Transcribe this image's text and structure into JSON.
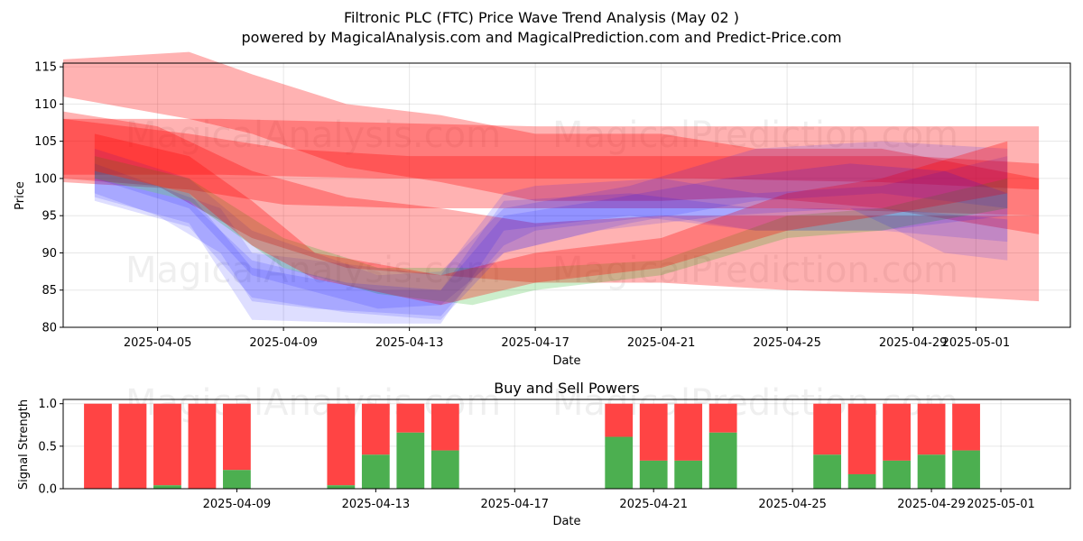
{
  "title_line1": "Filtronic PLC (FTC) Price Wave Trend Analysis (May 02 )",
  "title_line2": "powered by MagicalAnalysis.com and MagicalPrediction.com and Predict-Price.com",
  "watermarks": [
    "MagicalAnalysis.com",
    "MagicalPrediction.com"
  ],
  "colors": {
    "red": "#ff0000",
    "blue": "#0000ff",
    "green": "#00aa00",
    "buy": "#4caf50",
    "sell": "#ff4444"
  },
  "chart_data": [
    {
      "type": "area",
      "ylabel": "Price",
      "xlabel": "Date",
      "ylim": [
        80,
        115.5
      ],
      "xlim": [
        "2025-04-02",
        "2025-05-04"
      ],
      "y_ticks": [
        80,
        85,
        90,
        95,
        100,
        105,
        110,
        115
      ],
      "x_ticks": [
        "2025-04-05",
        "2025-04-09",
        "2025-04-13",
        "2025-04-17",
        "2025-04-21",
        "2025-04-25",
        "2025-04-29",
        "2025-05-01"
      ],
      "grid": true,
      "series": [
        {
          "color": "red",
          "upper": [
            [
              "2025-04-02",
              116
            ],
            [
              "2025-04-06",
              117
            ],
            [
              "2025-04-08",
              114
            ],
            [
              "2025-04-11",
              110
            ],
            [
              "2025-04-14",
              108.5
            ],
            [
              "2025-04-17",
              106
            ],
            [
              "2025-04-21",
              106
            ],
            [
              "2025-04-24",
              104
            ],
            [
              "2025-04-28",
              104
            ],
            [
              "2025-05-03",
              100
            ]
          ],
          "lower": [
            [
              "2025-04-02",
              111
            ],
            [
              "2025-04-06",
              108
            ],
            [
              "2025-04-08",
              106
            ],
            [
              "2025-04-11",
              101.5
            ],
            [
              "2025-04-14",
              99.5
            ],
            [
              "2025-04-17",
              97
            ],
            [
              "2025-04-21",
              97
            ],
            [
              "2025-04-24",
              97.5
            ],
            [
              "2025-04-28",
              96
            ],
            [
              "2025-05-03",
              92.5
            ]
          ]
        },
        {
          "color": "red",
          "upper": [
            [
              "2025-04-02",
              109
            ],
            [
              "2025-04-05",
              107
            ],
            [
              "2025-04-08",
              101
            ],
            [
              "2025-04-11",
              97.5
            ],
            [
              "2025-04-14",
              96
            ],
            [
              "2025-04-17",
              94
            ],
            [
              "2025-04-21",
              95
            ],
            [
              "2025-04-25",
              95
            ],
            [
              "2025-04-29",
              95
            ],
            [
              "2025-05-03",
              95
            ]
          ],
          "lower": [
            [
              "2025-04-02",
              100
            ],
            [
              "2025-04-05",
              99
            ],
            [
              "2025-04-08",
              92
            ],
            [
              "2025-04-11",
              88
            ],
            [
              "2025-04-14",
              87
            ],
            [
              "2025-04-17",
              86
            ],
            [
              "2025-04-21",
              86
            ],
            [
              "2025-04-25",
              85
            ],
            [
              "2025-04-29",
              84.5
            ],
            [
              "2025-05-03",
              83.5
            ]
          ]
        },
        {
          "color": "red",
          "upper": [
            [
              "2025-04-02",
              108
            ],
            [
              "2025-04-07",
              108
            ],
            [
              "2025-04-12",
              107.5
            ],
            [
              "2025-04-17",
              107
            ],
            [
              "2025-04-22",
              107
            ],
            [
              "2025-04-28",
              107
            ],
            [
              "2025-05-03",
              107
            ]
          ],
          "lower": [
            [
              "2025-04-02",
              100.5
            ],
            [
              "2025-04-07",
              100.5
            ],
            [
              "2025-04-12",
              100
            ],
            [
              "2025-04-17",
              100
            ],
            [
              "2025-04-22",
              100
            ],
            [
              "2025-04-28",
              99.5
            ],
            [
              "2025-05-03",
              98.5
            ]
          ]
        },
        {
          "color": "red",
          "upper": [
            [
              "2025-04-02",
              108
            ],
            [
              "2025-04-06",
              106
            ],
            [
              "2025-04-09",
              104
            ],
            [
              "2025-04-13",
              103
            ],
            [
              "2025-04-17",
              103
            ],
            [
              "2025-04-21",
              103
            ],
            [
              "2025-04-25",
              103
            ],
            [
              "2025-04-29",
              103
            ],
            [
              "2025-05-03",
              102
            ]
          ],
          "lower": [
            [
              "2025-04-02",
              99.5
            ],
            [
              "2025-04-06",
              98.5
            ],
            [
              "2025-04-09",
              96.5
            ],
            [
              "2025-04-13",
              96
            ],
            [
              "2025-04-17",
              96
            ],
            [
              "2025-04-21",
              96
            ],
            [
              "2025-04-25",
              96
            ],
            [
              "2025-04-29",
              95.5
            ],
            [
              "2025-05-03",
              95
            ]
          ]
        },
        {
          "color": "blue",
          "upper": [
            [
              "2025-04-03",
              102
            ],
            [
              "2025-04-05",
              99
            ],
            [
              "2025-04-07",
              96
            ],
            [
              "2025-04-08",
              90
            ],
            [
              "2025-04-10",
              89
            ],
            [
              "2025-04-14",
              87
            ],
            [
              "2025-04-16",
              98
            ],
            [
              "2025-04-17",
              99
            ],
            [
              "2025-04-21",
              100
            ],
            [
              "2025-04-24",
              98
            ],
            [
              "2025-04-28",
              99
            ],
            [
              "2025-05-02",
              103
            ]
          ],
          "lower": [
            [
              "2025-04-03",
              98
            ],
            [
              "2025-04-05",
              95
            ],
            [
              "2025-04-07",
              90
            ],
            [
              "2025-04-08",
              83.5
            ],
            [
              "2025-04-10",
              82.5
            ],
            [
              "2025-04-14",
              81.5
            ],
            [
              "2025-04-16",
              91
            ],
            [
              "2025-04-17",
              93
            ],
            [
              "2025-04-21",
              95
            ],
            [
              "2025-04-24",
              93
            ],
            [
              "2025-04-28",
              93
            ],
            [
              "2025-05-02",
              95
            ]
          ]
        },
        {
          "color": "blue",
          "upper": [
            [
              "2025-04-03",
              101
            ],
            [
              "2025-04-06",
              98
            ],
            [
              "2025-04-08",
              88
            ],
            [
              "2025-04-12",
              85
            ],
            [
              "2025-04-14",
              85
            ],
            [
              "2025-04-16",
              97
            ],
            [
              "2025-04-20",
              98
            ],
            [
              "2025-04-24",
              96
            ],
            [
              "2025-04-28",
              96
            ],
            [
              "2025-05-02",
              94.5
            ]
          ],
          "lower": [
            [
              "2025-04-03",
              97.5
            ],
            [
              "2025-04-06",
              94
            ],
            [
              "2025-04-08",
              81
            ],
            [
              "2025-04-12",
              80.5
            ],
            [
              "2025-04-14",
              80.5
            ],
            [
              "2025-04-16",
              93
            ],
            [
              "2025-04-20",
              95
            ],
            [
              "2025-04-24",
              93
            ],
            [
              "2025-04-28",
              93
            ],
            [
              "2025-05-02",
              91.5
            ]
          ]
        },
        {
          "color": "blue",
          "upper": [
            [
              "2025-04-03",
              104
            ],
            [
              "2025-04-06",
              100
            ],
            [
              "2025-04-08",
              93
            ],
            [
              "2025-04-12",
              87
            ],
            [
              "2025-04-14",
              87.5
            ],
            [
              "2025-04-16",
              96
            ],
            [
              "2025-04-20",
              99
            ],
            [
              "2025-04-24",
              104
            ],
            [
              "2025-04-28",
              105
            ],
            [
              "2025-05-02",
              104
            ]
          ],
          "lower": [
            [
              "2025-04-03",
              100
            ],
            [
              "2025-04-06",
              96
            ],
            [
              "2025-04-08",
              87
            ],
            [
              "2025-04-12",
              82.5
            ],
            [
              "2025-04-14",
              83
            ],
            [
              "2025-04-16",
              90
            ],
            [
              "2025-04-20",
              94
            ],
            [
              "2025-04-24",
              97
            ],
            [
              "2025-04-28",
              98
            ],
            [
              "2025-05-02",
              96
            ]
          ]
        },
        {
          "color": "green",
          "upper": [
            [
              "2025-04-03",
              103
            ],
            [
              "2025-04-06",
              100
            ],
            [
              "2025-04-09",
              92
            ],
            [
              "2025-04-12",
              88
            ],
            [
              "2025-04-15",
              88
            ],
            [
              "2025-04-17",
              88
            ],
            [
              "2025-04-21",
              89
            ],
            [
              "2025-04-25",
              95
            ],
            [
              "2025-04-28",
              96
            ],
            [
              "2025-05-02",
              100
            ]
          ],
          "lower": [
            [
              "2025-04-03",
              100
            ],
            [
              "2025-04-06",
              97
            ],
            [
              "2025-04-09",
              88
            ],
            [
              "2025-04-12",
              84.5
            ],
            [
              "2025-04-15",
              83
            ],
            [
              "2025-04-17",
              85
            ],
            [
              "2025-04-21",
              87
            ],
            [
              "2025-04-25",
              92
            ],
            [
              "2025-04-28",
              93
            ],
            [
              "2025-05-02",
              96
            ]
          ]
        },
        {
          "color": "red",
          "upper": [
            [
              "2025-04-03",
              106
            ],
            [
              "2025-04-06",
              103
            ],
            [
              "2025-04-08",
              97
            ],
            [
              "2025-04-10",
              90
            ],
            [
              "2025-04-14",
              87
            ],
            [
              "2025-04-17",
              90
            ],
            [
              "2025-04-21",
              92
            ],
            [
              "2025-04-25",
              98
            ],
            [
              "2025-04-28",
              100
            ],
            [
              "2025-05-02",
              105
            ]
          ],
          "lower": [
            [
              "2025-04-03",
              101
            ],
            [
              "2025-04-06",
              98
            ],
            [
              "2025-04-08",
              91
            ],
            [
              "2025-04-10",
              86.5
            ],
            [
              "2025-04-14",
              83
            ],
            [
              "2025-04-17",
              86
            ],
            [
              "2025-04-21",
              88
            ],
            [
              "2025-04-25",
              93
            ],
            [
              "2025-04-28",
              95
            ],
            [
              "2025-05-02",
              98
            ]
          ]
        },
        {
          "color": "blue",
          "upper": [
            [
              "2025-04-03",
              100
            ],
            [
              "2025-04-06",
              97
            ],
            [
              "2025-04-08",
              89
            ],
            [
              "2025-04-11",
              86
            ],
            [
              "2025-04-14",
              85
            ],
            [
              "2025-04-16",
              95
            ],
            [
              "2025-04-19",
              97
            ],
            [
              "2025-04-23",
              100
            ],
            [
              "2025-04-27",
              102
            ],
            [
              "2025-04-30",
              101
            ],
            [
              "2025-05-02",
              98
            ]
          ],
          "lower": [
            [
              "2025-04-03",
              97
            ],
            [
              "2025-04-06",
              93.5
            ],
            [
              "2025-04-08",
              84
            ],
            [
              "2025-04-11",
              82
            ],
            [
              "2025-04-14",
              81
            ],
            [
              "2025-04-16",
              90
            ],
            [
              "2025-04-19",
              93
            ],
            [
              "2025-04-23",
              95
            ],
            [
              "2025-04-27",
              96
            ],
            [
              "2025-04-30",
              90
            ],
            [
              "2025-05-02",
              89
            ]
          ]
        }
      ]
    },
    {
      "type": "bar",
      "title": "Buy and Sell Powers",
      "ylabel": "Signal Strength",
      "xlabel": "Date",
      "ylim": [
        0,
        1.05
      ],
      "y_ticks": [
        "0.0",
        "0.5",
        "1.0"
      ],
      "x_ticks": [
        "2025-04-09",
        "2025-04-13",
        "2025-04-17",
        "2025-04-21",
        "2025-04-25",
        "2025-04-29",
        "2025-05-01"
      ],
      "xlim": [
        "2025-04-04",
        "2025-05-03"
      ],
      "grid": true,
      "bars": [
        {
          "date": "2025-04-05",
          "buy": 0.0
        },
        {
          "date": "2025-04-06",
          "buy": 0.0
        },
        {
          "date": "2025-04-07",
          "buy": 0.04
        },
        {
          "date": "2025-04-08",
          "buy": 0.0
        },
        {
          "date": "2025-04-09",
          "buy": 0.22
        },
        {
          "date": "2025-04-12",
          "buy": 0.04
        },
        {
          "date": "2025-04-13",
          "buy": 0.4
        },
        {
          "date": "2025-04-14",
          "buy": 0.66
        },
        {
          "date": "2025-04-15",
          "buy": 0.45
        },
        {
          "date": "2025-04-20",
          "buy": 0.61
        },
        {
          "date": "2025-04-21",
          "buy": 0.33
        },
        {
          "date": "2025-04-22",
          "buy": 0.33
        },
        {
          "date": "2025-04-23",
          "buy": 0.66
        },
        {
          "date": "2025-04-26",
          "buy": 0.4
        },
        {
          "date": "2025-04-27",
          "buy": 0.17
        },
        {
          "date": "2025-04-28",
          "buy": 0.33
        },
        {
          "date": "2025-04-29",
          "buy": 0.4
        },
        {
          "date": "2025-04-30",
          "buy": 0.45
        }
      ]
    }
  ]
}
